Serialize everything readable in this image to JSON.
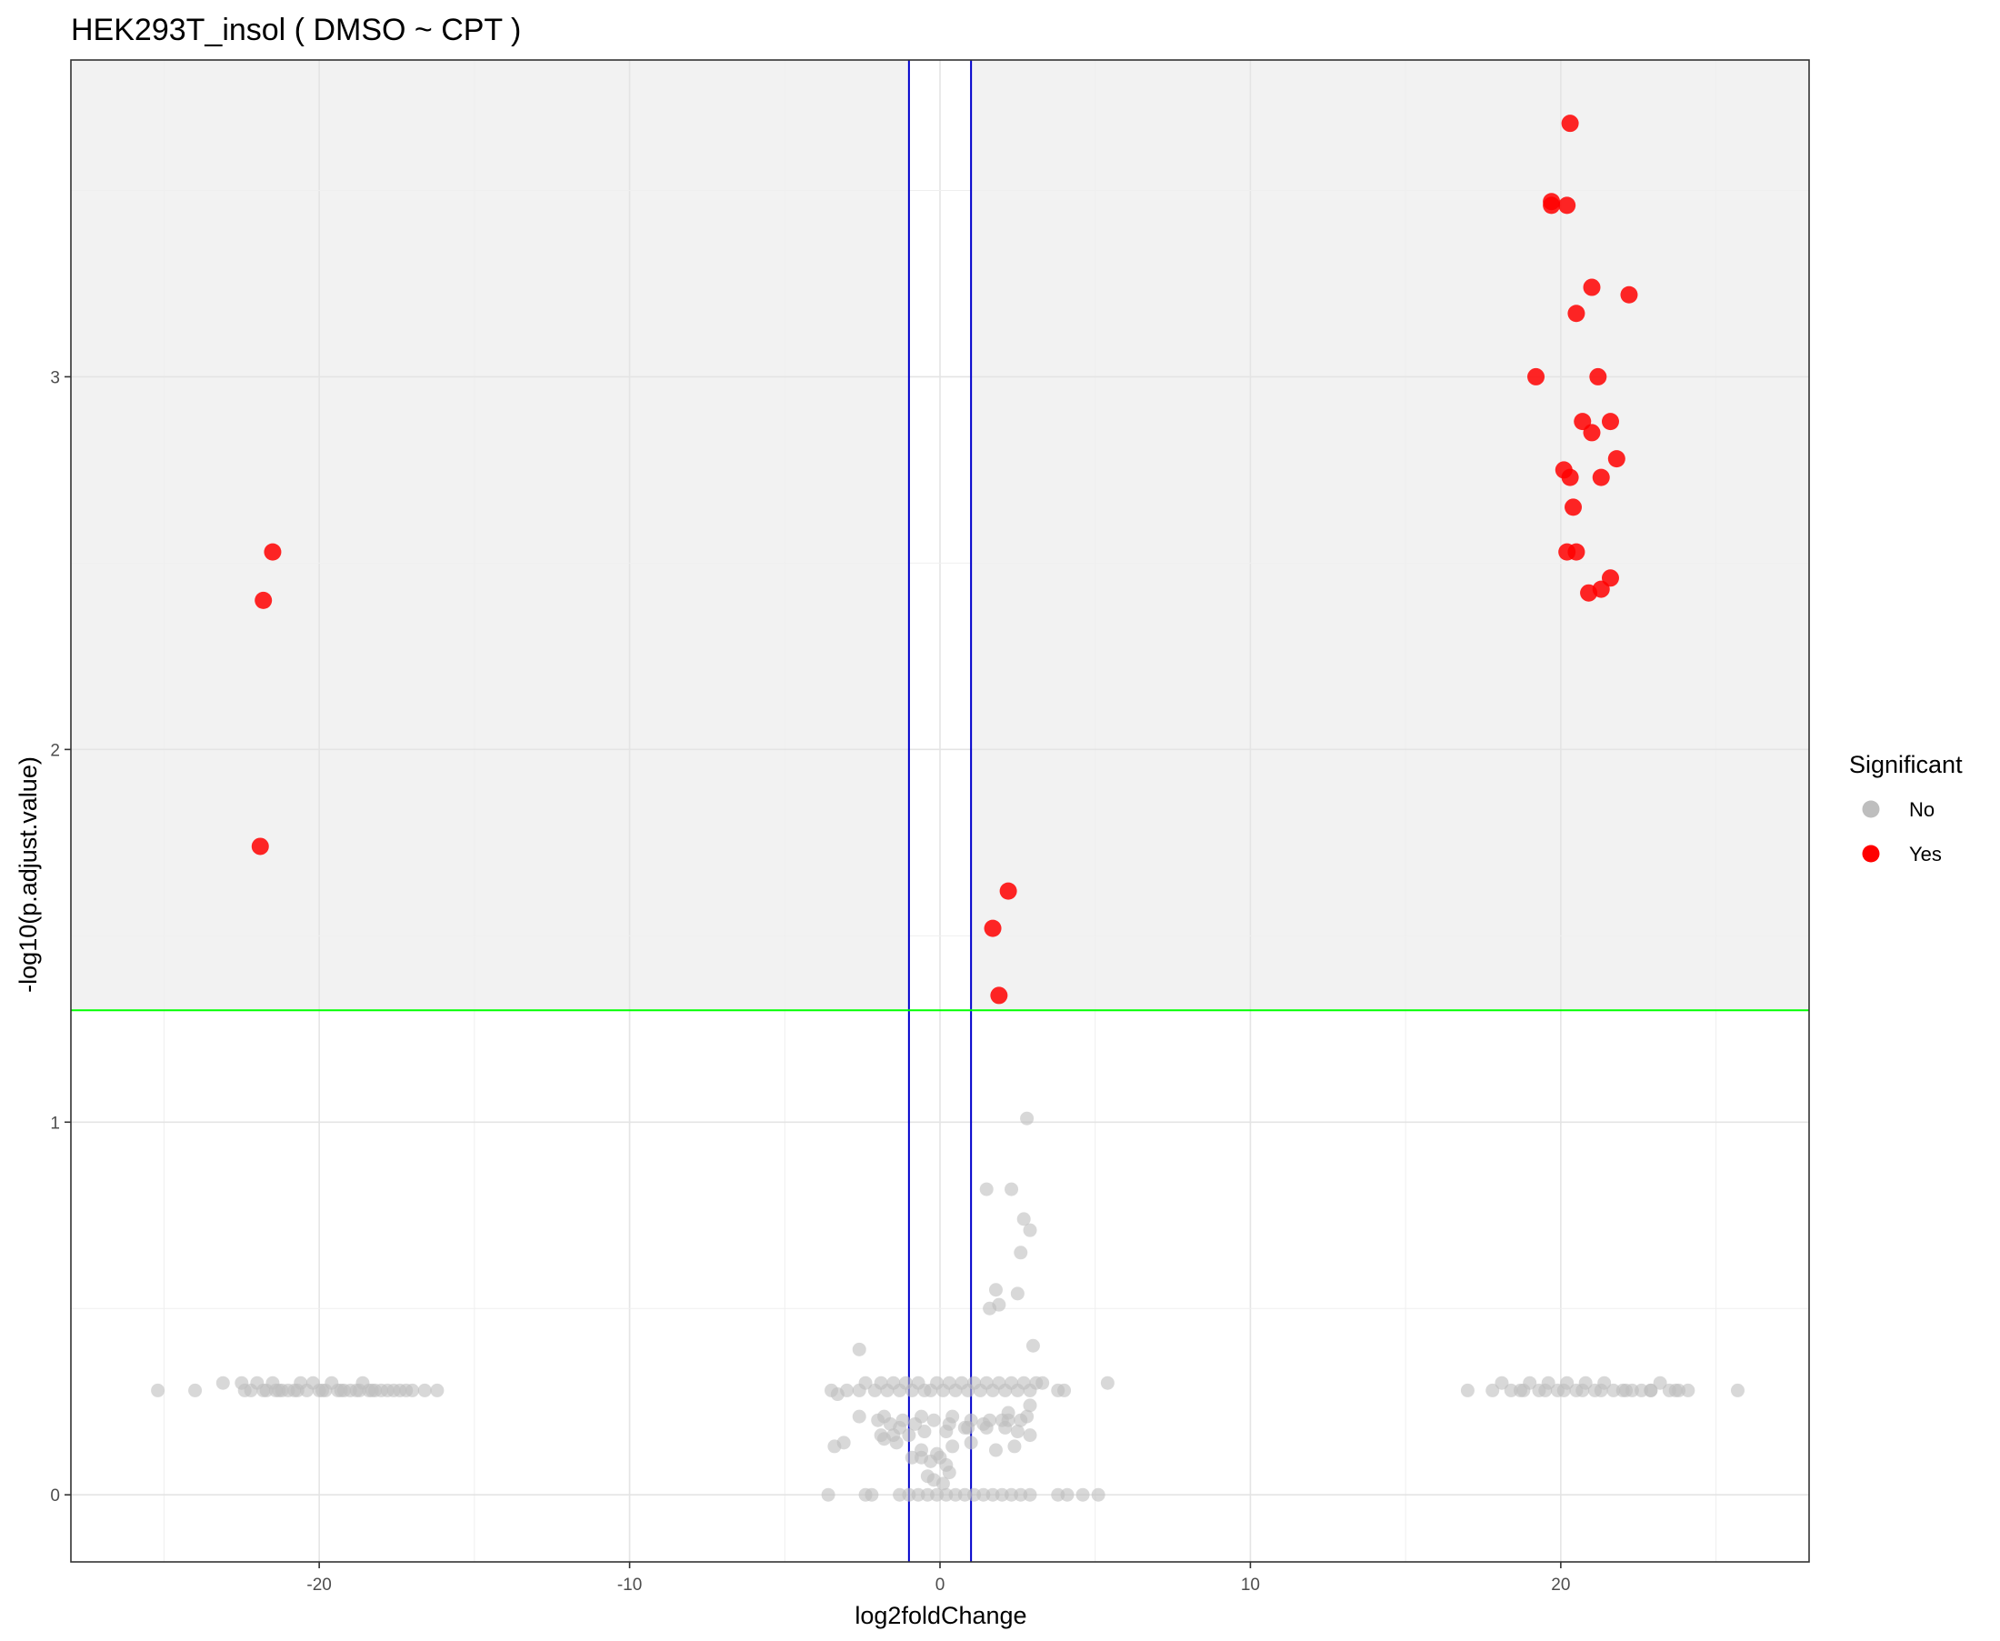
{
  "chart_data": {
    "type": "scatter",
    "title": "HEK293T_insol ( DMSO ~ CPT )",
    "xlabel": "log2foldChange",
    "ylabel": "-log10(p.adjust.value)",
    "xlim": [
      -28,
      28
    ],
    "ylim": [
      -0.18,
      3.85
    ],
    "x_ticks": [
      -20,
      -10,
      0,
      10,
      20
    ],
    "x_tick_labels": [
      "-20",
      "-10",
      "0",
      "10",
      "20"
    ],
    "y_ticks": [
      0,
      1,
      2,
      3
    ],
    "y_tick_labels": [
      "0",
      "1",
      "2",
      "3"
    ],
    "grid": true,
    "shaded_region": {
      "y_above": 1.3,
      "color": "#f2f2f2"
    },
    "reference_lines": {
      "vertical": {
        "x": [
          -1,
          1
        ],
        "color": "#0000cc"
      },
      "horizontal": {
        "y": 1.3,
        "color": "#00ff00"
      }
    },
    "legend": {
      "title": "Significant",
      "position": "right",
      "entries": [
        {
          "label": "No",
          "color": "#bebebe"
        },
        {
          "label": "Yes",
          "color": "#ff0000"
        }
      ]
    },
    "series": [
      {
        "name": "No",
        "color": "#bebebe",
        "x": [
          -25.2,
          -24.0,
          -23.1,
          -22.5,
          -22.2,
          -22.0,
          -21.7,
          -21.5,
          -21.3,
          -21.2,
          -21.0,
          -20.8,
          -20.6,
          -20.4,
          -20.2,
          -20.0,
          -19.8,
          -19.6,
          -19.4,
          -19.2,
          -19.0,
          -18.8,
          -18.6,
          -18.4,
          -18.2,
          -18.0,
          -17.8,
          -17.6,
          -17.4,
          -17.2,
          -17.0,
          -16.6,
          -16.2,
          -22.4,
          -21.8,
          -21.4,
          -20.7,
          -19.9,
          -19.3,
          -18.7,
          -18.3,
          -3.5,
          -3.3,
          -3.0,
          -2.6,
          -2.4,
          -2.1,
          -1.9,
          -1.7,
          -1.5,
          -1.3,
          -1.1,
          -0.9,
          -0.7,
          -0.5,
          -0.3,
          -0.1,
          0.1,
          0.3,
          0.5,
          0.7,
          0.9,
          1.1,
          1.3,
          1.5,
          1.7,
          1.9,
          2.1,
          2.3,
          2.5,
          2.7,
          2.9,
          3.1,
          3.3,
          3.8,
          4.0,
          5.4,
          -2.6,
          -1.8,
          -1.2,
          -0.6,
          0.4,
          1.0,
          1.6,
          2.2,
          2.8,
          -1.9,
          -1.5,
          -1.0,
          -0.5,
          0.2,
          0.9,
          1.5,
          2.1,
          2.5,
          2.9,
          -2.0,
          -1.6,
          -1.3,
          -0.8,
          -0.2,
          0.3,
          0.8,
          1.4,
          2.0,
          2.6,
          -3.4,
          -3.1,
          -1.8,
          -1.4,
          -0.6,
          -0.1,
          0.4,
          1.0,
          1.8,
          2.4,
          -0.9,
          -0.6,
          -0.3,
          0.0,
          0.2,
          -0.4,
          0.1,
          -0.2,
          0.3,
          -3.6,
          -2.4,
          -2.2,
          -1.3,
          -1.0,
          -0.7,
          -0.4,
          -0.1,
          0.2,
          0.5,
          0.8,
          1.1,
          1.4,
          1.7,
          2.0,
          2.3,
          2.6,
          2.9,
          3.8,
          4.1,
          4.6,
          5.1,
          1.5,
          2.3,
          2.8,
          1.8,
          2.7,
          2.9,
          2.6,
          2.5,
          1.9,
          1.6,
          3.0,
          2.9,
          2.2,
          -2.6,
          17.0,
          17.8,
          18.1,
          18.4,
          18.7,
          19.0,
          19.3,
          19.6,
          19.9,
          20.2,
          20.5,
          20.8,
          21.1,
          21.4,
          21.7,
          22.0,
          22.3,
          22.6,
          22.9,
          23.2,
          23.5,
          23.8,
          24.1,
          25.7,
          18.8,
          19.5,
          20.1,
          20.7,
          21.3,
          22.1,
          22.9,
          23.7
        ],
        "y": [
          0.28,
          0.28,
          0.3,
          0.3,
          0.28,
          0.3,
          0.28,
          0.3,
          0.28,
          0.28,
          0.28,
          0.28,
          0.3,
          0.28,
          0.3,
          0.28,
          0.28,
          0.3,
          0.28,
          0.28,
          0.28,
          0.28,
          0.3,
          0.28,
          0.28,
          0.28,
          0.28,
          0.28,
          0.28,
          0.28,
          0.28,
          0.28,
          0.28,
          0.28,
          0.28,
          0.28,
          0.28,
          0.28,
          0.28,
          0.28,
          0.28,
          0.28,
          0.27,
          0.28,
          0.28,
          0.3,
          0.28,
          0.3,
          0.28,
          0.3,
          0.28,
          0.3,
          0.28,
          0.3,
          0.28,
          0.28,
          0.3,
          0.28,
          0.3,
          0.28,
          0.3,
          0.28,
          0.3,
          0.28,
          0.3,
          0.28,
          0.3,
          0.28,
          0.3,
          0.28,
          0.3,
          0.28,
          0.3,
          0.3,
          0.28,
          0.28,
          0.3,
          0.21,
          0.21,
          0.2,
          0.21,
          0.21,
          0.2,
          0.2,
          0.2,
          0.21,
          0.16,
          0.16,
          0.16,
          0.17,
          0.17,
          0.18,
          0.18,
          0.18,
          0.17,
          0.16,
          0.2,
          0.19,
          0.18,
          0.19,
          0.2,
          0.19,
          0.18,
          0.19,
          0.2,
          0.2,
          0.13,
          0.14,
          0.15,
          0.14,
          0.12,
          0.11,
          0.13,
          0.14,
          0.12,
          0.13,
          0.1,
          0.1,
          0.09,
          0.1,
          0.08,
          0.05,
          0.03,
          0.04,
          0.06,
          0.0,
          0.0,
          0.0,
          0.0,
          0.0,
          0.0,
          0.0,
          0.0,
          0.0,
          0.0,
          0.0,
          0.0,
          0.0,
          0.0,
          0.0,
          0.0,
          0.0,
          0.0,
          0.0,
          0.0,
          0.0,
          0.0,
          0.82,
          0.82,
          1.01,
          0.55,
          0.74,
          0.71,
          0.65,
          0.54,
          0.51,
          0.5,
          0.4,
          0.24,
          0.22,
          0.39,
          0.28,
          0.28,
          0.3,
          0.28,
          0.28,
          0.3,
          0.28,
          0.3,
          0.28,
          0.3,
          0.28,
          0.3,
          0.28,
          0.3,
          0.28,
          0.28,
          0.28,
          0.28,
          0.28,
          0.3,
          0.28,
          0.28,
          0.28,
          0.28,
          0.28,
          0.28,
          0.28,
          0.28,
          0.28,
          0.28,
          0.28,
          0.28
        ]
      },
      {
        "name": "Yes",
        "color": "#ff0000",
        "x": [
          -21.5,
          -21.8,
          -21.9,
          2.2,
          1.7,
          1.9,
          20.3,
          19.7,
          19.7,
          20.2,
          21.0,
          22.2,
          20.5,
          19.2,
          21.2,
          20.7,
          21.6,
          21.0,
          21.8,
          20.1,
          20.3,
          21.3,
          20.4,
          20.2,
          20.5,
          21.6,
          21.3,
          20.9
        ],
        "y": [
          2.53,
          2.4,
          1.74,
          1.62,
          1.52,
          1.34,
          3.68,
          3.47,
          3.46,
          3.46,
          3.24,
          3.22,
          3.17,
          3.0,
          3.0,
          2.88,
          2.88,
          2.85,
          2.78,
          2.75,
          2.73,
          2.73,
          2.65,
          2.53,
          2.53,
          2.46,
          2.43,
          2.42
        ]
      }
    ]
  }
}
